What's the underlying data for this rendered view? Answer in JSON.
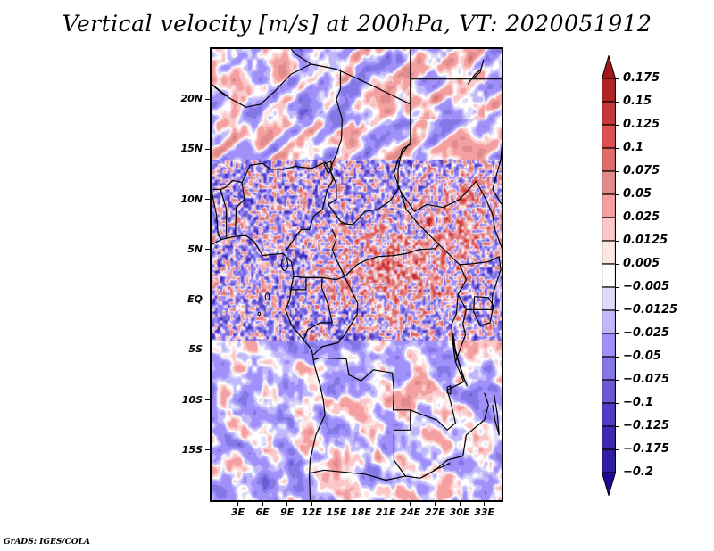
{
  "title": "Vertical velocity [m/s] at 200hPa, VT: 2020051912",
  "footer": "GrADS: IGES/COLA",
  "map": {
    "projection": "latlon",
    "lon_range": [
      -0.2,
      35.1
    ],
    "lat_range": [
      -20,
      25
    ],
    "lat_ticks": [
      {
        "value": 20,
        "label": "20N"
      },
      {
        "value": 15,
        "label": "15N"
      },
      {
        "value": 10,
        "label": "10N"
      },
      {
        "value": 5,
        "label": "5N"
      },
      {
        "value": 0,
        "label": "EQ"
      },
      {
        "value": -5,
        "label": "5S"
      },
      {
        "value": -10,
        "label": "10S"
      },
      {
        "value": -15,
        "label": "15S"
      }
    ],
    "lon_ticks": [
      {
        "value": 3,
        "label": "3E"
      },
      {
        "value": 6,
        "label": "6E"
      },
      {
        "value": 9,
        "label": "9E"
      },
      {
        "value": 12,
        "label": "12E"
      },
      {
        "value": 15,
        "label": "15E"
      },
      {
        "value": 18,
        "label": "18E"
      },
      {
        "value": 21,
        "label": "21E"
      },
      {
        "value": 24,
        "label": "24E"
      },
      {
        "value": 27,
        "label": "27E"
      },
      {
        "value": 30,
        "label": "30E"
      },
      {
        "value": 33,
        "label": "33E"
      }
    ],
    "variable": "Vertical velocity",
    "units": "m/s",
    "level": "200hPa",
    "valid_time": "2020051912"
  },
  "colorbar": {
    "levels": [
      {
        "label": "0.175",
        "value": 0.175
      },
      {
        "label": "0.15",
        "value": 0.15
      },
      {
        "label": "0.125",
        "value": 0.125
      },
      {
        "label": "0.1",
        "value": 0.1
      },
      {
        "label": "0.075",
        "value": 0.075
      },
      {
        "label": "0.05",
        "value": 0.05
      },
      {
        "label": "0.025",
        "value": 0.025
      },
      {
        "label": "0.0125",
        "value": 0.0125
      },
      {
        "label": "0.005",
        "value": 0.005
      },
      {
        "label": "−0.005",
        "value": -0.005
      },
      {
        "label": "−0.0125",
        "value": -0.0125
      },
      {
        "label": "−0.025",
        "value": -0.025
      },
      {
        "label": "−0.05",
        "value": -0.05
      },
      {
        "label": "−0.075",
        "value": -0.075
      },
      {
        "label": "−0.1",
        "value": -0.1
      },
      {
        "label": "−0.125",
        "value": -0.125
      },
      {
        "label": "−0.175",
        "value": -0.175
      },
      {
        "label": "−0.2",
        "value": -0.2
      }
    ],
    "colors": [
      "#a01818",
      "#b42323",
      "#c83737",
      "#e05050",
      "#e06c6c",
      "#e08c8c",
      "#f5a0a0",
      "#fac8c8",
      "#fde6e6",
      "#ffffff",
      "#dcdcfa",
      "#c0b8fa",
      "#a090fa",
      "#8478e6",
      "#6c5ad2",
      "#4e3cc8",
      "#3e28b4",
      "#2e1ea0",
      "#1e0a96"
    ]
  }
}
